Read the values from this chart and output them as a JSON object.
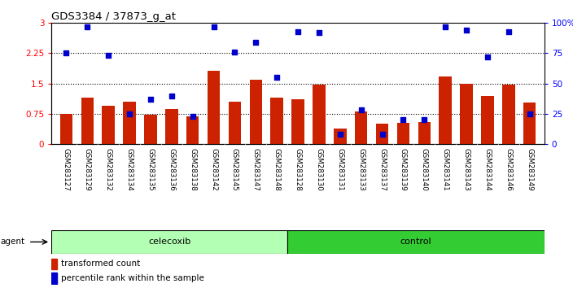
{
  "title": "GDS3384 / 37873_g_at",
  "samples": [
    "GSM283127",
    "GSM283129",
    "GSM283132",
    "GSM283134",
    "GSM283135",
    "GSM283136",
    "GSM283138",
    "GSM283142",
    "GSM283145",
    "GSM283147",
    "GSM283148",
    "GSM283128",
    "GSM283130",
    "GSM283131",
    "GSM283133",
    "GSM283137",
    "GSM283139",
    "GSM283140",
    "GSM283141",
    "GSM283143",
    "GSM283144",
    "GSM283146",
    "GSM283149"
  ],
  "transformed_count": [
    0.75,
    1.15,
    0.95,
    1.05,
    0.72,
    0.87,
    0.68,
    1.82,
    1.05,
    1.6,
    1.15,
    1.1,
    1.47,
    0.38,
    0.8,
    0.5,
    0.52,
    0.55,
    1.68,
    1.5,
    1.2,
    1.47,
    1.02
  ],
  "percentile_rank": [
    75,
    97,
    73,
    25,
    37,
    40,
    23,
    97,
    76,
    84,
    55,
    93,
    92,
    8,
    28,
    8,
    20,
    20,
    97,
    94,
    72,
    93,
    25
  ],
  "celecoxib_count": 11,
  "control_count": 12,
  "celecoxib_color": "#b3ffb3",
  "control_color": "#33cc33",
  "bar_color": "#cc2200",
  "dot_color": "#0000cc",
  "ylim_left": [
    0,
    3
  ],
  "ylim_right": [
    0,
    100
  ],
  "yticks_left": [
    0,
    0.75,
    1.5,
    2.25,
    3
  ],
  "yticks_right": [
    0,
    25,
    50,
    75,
    100
  ],
  "ytick_labels_left": [
    "0",
    "0.75",
    "1.5",
    "2.25",
    "3"
  ],
  "ytick_labels_right": [
    "0",
    "25",
    "50",
    "75",
    "100%"
  ],
  "hlines": [
    0.75,
    1.5,
    2.25
  ],
  "background_color": "#ffffff",
  "plot_bg_color": "#ffffff",
  "label_bg_color": "#d8d8d8"
}
